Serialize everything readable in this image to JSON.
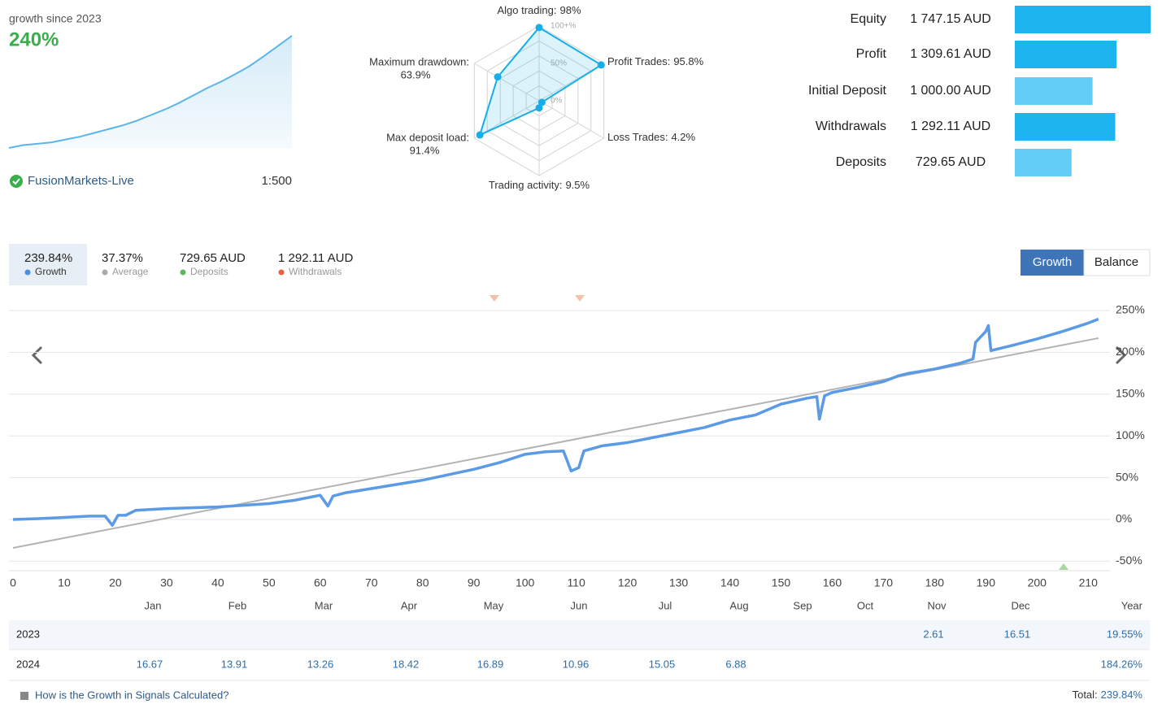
{
  "summary": {
    "caption": "growth since 2023",
    "growth": "240%",
    "server": "FusionMarkets-Live",
    "leverage": "1:500",
    "sparkline": {
      "type": "area",
      "color": "#5bb5ea",
      "values": [
        0,
        6,
        9,
        12,
        18,
        24,
        32,
        40,
        48,
        58,
        70,
        82,
        96,
        112,
        128,
        142,
        158,
        175,
        196,
        218,
        240
      ]
    }
  },
  "radar": {
    "type": "radar",
    "color": "#16aee9",
    "axes": [
      {
        "name": "Algo trading:",
        "value_label": "98%",
        "value": 98
      },
      {
        "name": "Profit Trades:",
        "value_label": "95.8%",
        "value": 95.8
      },
      {
        "name": "Loss Trades:",
        "value_label": "4.2%",
        "value": 4.2
      },
      {
        "name": "Trading activity:",
        "value_label": "9.5%",
        "value": 9.5
      },
      {
        "name": "Max deposit load:",
        "value_label": "91.4%",
        "value": 91.4
      },
      {
        "name": "Maximum drawdown:",
        "value_label": "63.9%",
        "value": 63.9
      }
    ],
    "rings": [
      {
        "value": 100,
        "label": "100+%"
      },
      {
        "value": 50,
        "label": "50%"
      },
      {
        "value": 0,
        "label": "0%"
      }
    ]
  },
  "stats": {
    "type": "bar",
    "rows": [
      {
        "label": "Equity",
        "value_label": "1 747.15 AUD",
        "value": 1747.15,
        "color": "#1db4f0"
      },
      {
        "label": "Profit",
        "value_label": "1 309.61 AUD",
        "value": 1309.61,
        "color": "#1db4f0"
      },
      {
        "label": "Initial Deposit",
        "value_label": "1 000.00 AUD",
        "value": 1000.0,
        "color": "#63cdf5"
      },
      {
        "label": "Withdrawals",
        "value_label": "1 292.11 AUD",
        "value": 1292.11,
        "color": "#1db4f0"
      },
      {
        "label": "Deposits",
        "value_label": "729.65 AUD",
        "value": 729.65,
        "color": "#63cdf5"
      }
    ]
  },
  "tabs": [
    {
      "figure": "239.84%",
      "label": "Growth",
      "color": "#4a90e2"
    },
    {
      "figure": "37.37%",
      "label": "Average",
      "color": "#aaaaaa"
    },
    {
      "figure": "729.65 AUD",
      "label": "Deposits",
      "color": "#5cb85c"
    },
    {
      "figure": "1 292.11 AUD",
      "label": "Withdrawals",
      "color": "#e8603c"
    }
  ],
  "buttons": [
    "Growth",
    "Balance"
  ],
  "chart_data": {
    "type": "line",
    "grid": true,
    "xlim": [
      0,
      212.5
    ],
    "xticks": [
      0,
      10,
      20,
      30,
      40,
      50,
      60,
      70,
      80,
      90,
      100,
      110,
      120,
      130,
      140,
      150,
      160,
      170,
      180,
      190,
      200,
      210
    ],
    "ylim": [
      -60,
      250
    ],
    "yticks": [
      {
        "value": -50,
        "label": "-50%"
      },
      {
        "value": 0,
        "label": "0%"
      },
      {
        "value": 50,
        "label": "50%"
      },
      {
        "value": 100,
        "label": "100%"
      },
      {
        "value": 150,
        "label": "150%"
      },
      {
        "value": 200,
        "label": "200%"
      },
      {
        "value": 250,
        "label": "250%"
      }
    ],
    "series": [
      {
        "color": "#5b9be6",
        "x": [
          0,
          5,
          10,
          15,
          18,
          19.4,
          20.5,
          22,
          24,
          30,
          40,
          50,
          55,
          60,
          61.5,
          62.5,
          65,
          70,
          80,
          90,
          95,
          100,
          104,
          107.5,
          109,
          110.5,
          111.5,
          115,
          120,
          125,
          130,
          135,
          140,
          145,
          150,
          155,
          157,
          157.5,
          158.5,
          160,
          165,
          170,
          173,
          175,
          180,
          185,
          187.5,
          188,
          190,
          190.5,
          191,
          195,
          200,
          205,
          210,
          212
        ],
        "values": [
          0,
          1,
          2.5,
          4,
          4,
          -7,
          5,
          5,
          11,
          13,
          15,
          19,
          23,
          29,
          16,
          28,
          32,
          37,
          47,
          60,
          68,
          78,
          81,
          82,
          58,
          62,
          82,
          88,
          92,
          98,
          104,
          110,
          119,
          125,
          138,
          145,
          147,
          120,
          148,
          152,
          158,
          165,
          172,
          175,
          180,
          187,
          192,
          212,
          225,
          232,
          202,
          208,
          216,
          225,
          235,
          239.84
        ]
      },
      {
        "color": "#b3b3b3",
        "x": [
          0,
          212
        ],
        "values": [
          -34,
          217
        ]
      }
    ],
    "markers": [
      {
        "x": 94,
        "color": "#f5c0a8",
        "direction": "down"
      },
      {
        "x": 110.7,
        "color": "#f5c0a8",
        "direction": "down"
      },
      {
        "x": 205.2,
        "color": "#a8d8a0",
        "direction": "up"
      }
    ]
  },
  "table": {
    "columns": [
      "Jan",
      "Feb",
      "Mar",
      "Apr",
      "May",
      "Jun",
      "Jul",
      "Aug",
      "Sep",
      "Oct",
      "Nov",
      "Dec",
      "Year"
    ],
    "rows": [
      {
        "label": "2023",
        "values": [
          null,
          null,
          null,
          null,
          null,
          null,
          null,
          null,
          null,
          null,
          2.61,
          16.51
        ],
        "year": "19.55%"
      },
      {
        "label": "2024",
        "values": [
          16.67,
          13.91,
          13.26,
          18.42,
          16.89,
          10.96,
          15.05,
          6.88,
          null,
          null,
          null,
          null
        ],
        "year": "184.26%"
      }
    ]
  },
  "footer": {
    "link": "How is the Growth in Signals Calculated?",
    "total_label": "Total:",
    "total": "239.84%"
  }
}
